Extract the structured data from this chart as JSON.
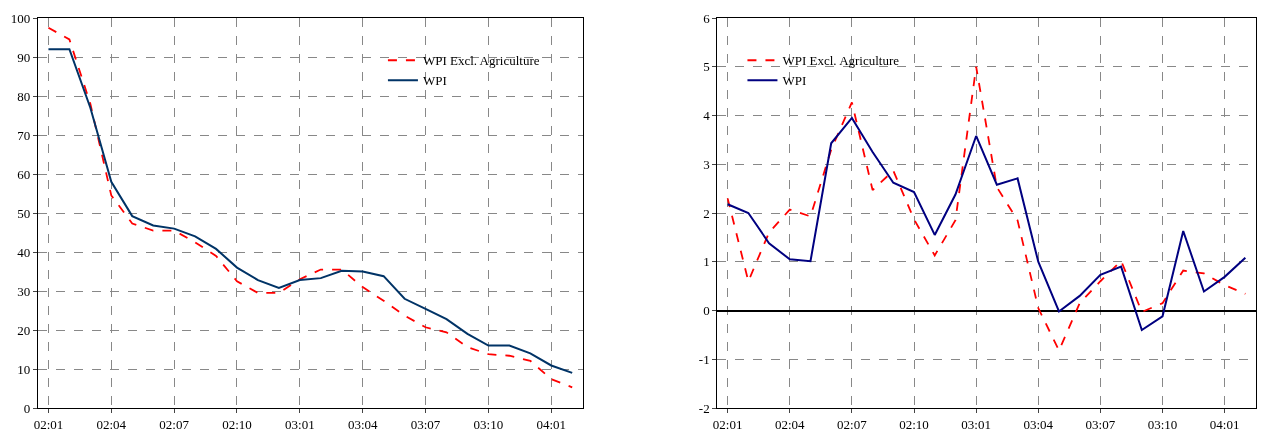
{
  "chart_data": [
    {
      "type": "line",
      "categories": [
        "02:01",
        null,
        null,
        "02:04",
        null,
        null,
        "02:07",
        null,
        null,
        "02:10",
        null,
        null,
        "03:01",
        null,
        null,
        "03:04",
        null,
        null,
        "03:07",
        null,
        null,
        "03:10",
        null,
        null,
        "04:01",
        null
      ],
      "ylim": [
        0,
        100
      ],
      "yticks": [
        0,
        10,
        20,
        30,
        40,
        50,
        60,
        70,
        80,
        90,
        100
      ],
      "grid": true,
      "legend": "top right",
      "series": [
        {
          "name": "WPI Excl. Agriculture",
          "color": "#ff0000",
          "line_style": "dashed",
          "values": [
            97.5,
            94.5,
            78,
            54.5,
            47.3,
            45.5,
            45.5,
            42.5,
            39,
            32.5,
            29.5,
            29.5,
            33,
            35.5,
            35.5,
            31,
            27.5,
            23.7,
            20.7,
            19.4,
            15.6,
            13.8,
            13.4,
            12.1,
            7.4,
            5.3
          ]
        },
        {
          "name": "WPI",
          "color": "#003366",
          "line_style": "solid",
          "values": [
            92,
            92,
            77,
            58,
            49.2,
            46.8,
            46,
            44,
            40.8,
            36,
            32.8,
            30.8,
            32.8,
            33.3,
            35.2,
            35,
            33.8,
            28,
            25.4,
            22.8,
            19,
            16,
            16,
            14,
            10.9,
            9
          ]
        }
      ]
    },
    {
      "type": "line",
      "categories": [
        "02:01",
        null,
        null,
        "02:04",
        null,
        null,
        "02:07",
        null,
        null,
        "02:10",
        null,
        null,
        "03:01",
        null,
        null,
        "03:04",
        null,
        null,
        "03:07",
        null,
        null,
        "03:10",
        null,
        null,
        "04:01",
        null
      ],
      "ylim": [
        -2,
        6
      ],
      "yticks": [
        -2,
        -1,
        0,
        1,
        2,
        3,
        4,
        5,
        6
      ],
      "grid": true,
      "legend": "top left",
      "series": [
        {
          "name": "WPI Excl. Agriculture",
          "color": "#ff0000",
          "line_style": "dashed",
          "values": [
            2.3,
            0.6,
            1.6,
            2.07,
            1.93,
            3.3,
            4.27,
            2.47,
            2.87,
            1.87,
            1.13,
            1.85,
            5.0,
            2.53,
            1.85,
            0.05,
            -0.82,
            0.15,
            0.6,
            1.02,
            -0.03,
            0.15,
            0.82,
            0.76,
            0.52,
            0.34
          ]
        },
        {
          "name": "WPI",
          "color": "#000080",
          "line_style": "solid",
          "values": [
            2.18,
            2.0,
            1.38,
            1.05,
            1.01,
            3.43,
            3.95,
            3.25,
            2.62,
            2.43,
            1.55,
            2.38,
            3.58,
            2.58,
            2.71,
            1.0,
            -0.02,
            0.3,
            0.73,
            0.9,
            -0.4,
            -0.12,
            1.63,
            0.39,
            0.69,
            1.08
          ]
        }
      ]
    }
  ]
}
